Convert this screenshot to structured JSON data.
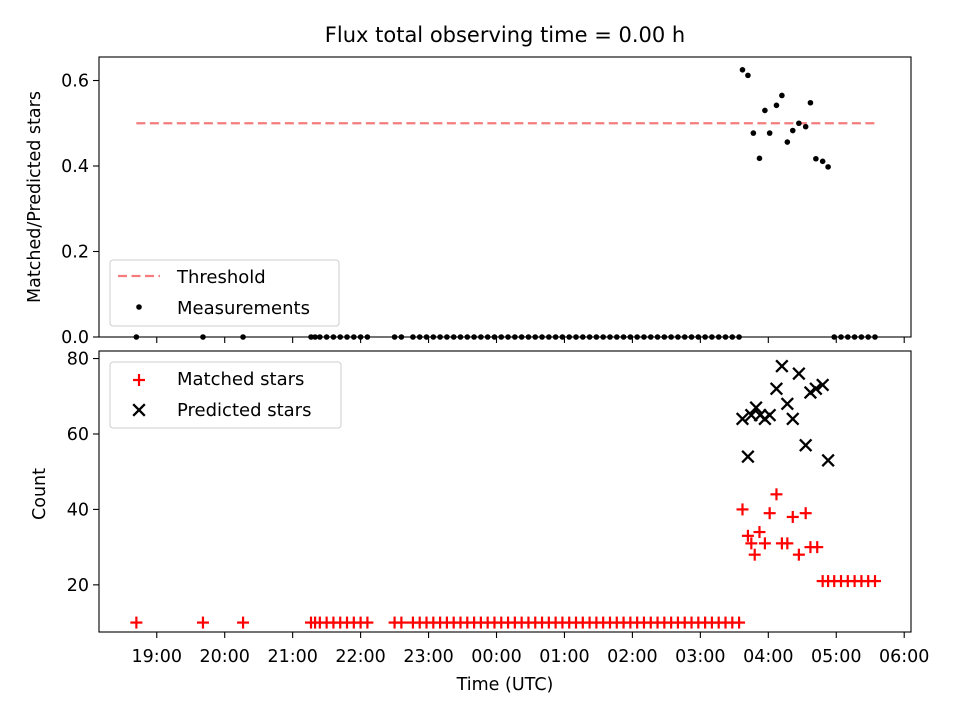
{
  "chart_data": [
    {
      "type": "scatter",
      "title": "Flux total observing time = 0.00 h",
      "xlabel": "",
      "ylabel": "Matched/Predicted stars",
      "ylim": [
        0,
        0.655
      ],
      "yticks": [
        0.0,
        0.2,
        0.4,
        0.6
      ],
      "ytick_labels": [
        "0.0",
        "0.2",
        "0.4",
        "0.6"
      ],
      "xlim": [
        18.15,
        30.1
      ],
      "legend": {
        "position": "bottom-left",
        "entries": [
          "Threshold",
          "Measurements"
        ]
      },
      "threshold": {
        "name": "Threshold",
        "value": 0.5,
        "x": [
          18.7,
          29.6
        ],
        "color": "#f47c7c"
      },
      "series": [
        {
          "name": "Measurements",
          "color": "#000000",
          "marker": "dot",
          "x": [
            18.7,
            19.68,
            20.27,
            21.27,
            21.33,
            21.4,
            21.5,
            21.6,
            21.7,
            21.8,
            21.9,
            22.0,
            22.1,
            22.5,
            22.6,
            22.77,
            22.87,
            22.97,
            23.07,
            23.17,
            23.27,
            23.37,
            23.47,
            23.57,
            23.67,
            23.77,
            23.87,
            23.97,
            24.07,
            24.17,
            24.27,
            24.37,
            24.47,
            24.57,
            24.67,
            24.77,
            24.87,
            24.97,
            25.07,
            25.17,
            25.27,
            25.37,
            25.47,
            25.57,
            25.67,
            25.77,
            25.87,
            25.97,
            26.07,
            26.17,
            26.27,
            26.37,
            26.47,
            26.57,
            26.67,
            26.77,
            26.87,
            26.97,
            27.07,
            27.17,
            27.27,
            27.37,
            27.47,
            27.57,
            27.62,
            27.7,
            27.78,
            27.87,
            27.95,
            28.02,
            28.12,
            28.2,
            28.28,
            28.36,
            28.45,
            28.55,
            28.62,
            28.7,
            28.8,
            28.88,
            28.97,
            29.07,
            29.17,
            29.27,
            29.37,
            29.47,
            29.57
          ],
          "y": [
            0,
            0,
            0,
            0,
            0,
            0,
            0,
            0,
            0,
            0,
            0,
            0,
            0,
            0,
            0,
            0,
            0,
            0,
            0,
            0,
            0,
            0,
            0,
            0,
            0,
            0,
            0,
            0,
            0,
            0,
            0,
            0,
            0,
            0,
            0,
            0,
            0,
            0,
            0,
            0,
            0,
            0,
            0,
            0,
            0,
            0,
            0,
            0,
            0,
            0,
            0,
            0,
            0,
            0,
            0,
            0,
            0,
            0,
            0,
            0,
            0,
            0,
            0,
            0,
            0.625,
            0.612,
            0.477,
            0.418,
            0.53,
            0.477,
            0.542,
            0.565,
            0.456,
            0.483,
            0.5,
            0.492,
            0.548,
            0.417,
            0.411,
            0.398,
            0,
            0,
            0,
            0,
            0,
            0,
            0
          ]
        }
      ]
    },
    {
      "type": "scatter",
      "title": "",
      "xlabel": "Time (UTC)",
      "ylabel": "Count",
      "ylim": [
        7.5,
        82
      ],
      "yticks": [
        20,
        40,
        60,
        80
      ],
      "ytick_labels": [
        "20",
        "40",
        "60",
        "80"
      ],
      "xlim": [
        18.15,
        30.1
      ],
      "xticks": [
        19,
        20,
        21,
        22,
        23,
        24,
        25,
        26,
        27,
        28,
        29,
        30
      ],
      "xtick_labels": [
        "19:00",
        "20:00",
        "21:00",
        "22:00",
        "23:00",
        "00:00",
        "01:00",
        "02:00",
        "03:00",
        "04:00",
        "05:00",
        "06:00"
      ],
      "legend": {
        "position": "top-left",
        "entries": [
          "Matched stars",
          "Predicted stars"
        ]
      },
      "series": [
        {
          "name": "Matched stars",
          "color": "#ff0000",
          "marker": "plus",
          "x": [
            18.7,
            19.68,
            20.27,
            21.27,
            21.33,
            21.4,
            21.5,
            21.6,
            21.7,
            21.8,
            21.9,
            22.0,
            22.1,
            22.5,
            22.6,
            22.77,
            22.87,
            22.97,
            23.07,
            23.17,
            23.27,
            23.37,
            23.47,
            23.57,
            23.67,
            23.77,
            23.87,
            23.97,
            24.07,
            24.17,
            24.27,
            24.37,
            24.47,
            24.57,
            24.67,
            24.77,
            24.87,
            24.97,
            25.07,
            25.17,
            25.27,
            25.37,
            25.47,
            25.57,
            25.67,
            25.77,
            25.87,
            25.97,
            26.07,
            26.17,
            26.27,
            26.37,
            26.47,
            26.57,
            26.67,
            26.77,
            26.87,
            26.97,
            27.07,
            27.17,
            27.27,
            27.37,
            27.47,
            27.57,
            27.62,
            27.7,
            27.75,
            27.8,
            27.87,
            27.95,
            28.02,
            28.12,
            28.2,
            28.28,
            28.36,
            28.45,
            28.55,
            28.62,
            28.72,
            28.8,
            28.88,
            28.97,
            29.07,
            29.17,
            29.27,
            29.37,
            29.47,
            29.57
          ],
          "y": [
            10,
            10,
            10,
            10,
            10,
            10,
            10,
            10,
            10,
            10,
            10,
            10,
            10,
            10,
            10,
            10,
            10,
            10,
            10,
            10,
            10,
            10,
            10,
            10,
            10,
            10,
            10,
            10,
            10,
            10,
            10,
            10,
            10,
            10,
            10,
            10,
            10,
            10,
            10,
            10,
            10,
            10,
            10,
            10,
            10,
            10,
            10,
            10,
            10,
            10,
            10,
            10,
            10,
            10,
            10,
            10,
            10,
            10,
            10,
            10,
            10,
            10,
            10,
            10,
            40,
            33,
            31,
            28,
            34,
            31,
            39,
            44,
            31,
            31,
            38,
            28,
            39,
            30,
            30,
            21,
            21,
            21,
            21,
            21,
            21,
            21,
            21,
            21
          ]
        },
        {
          "name": "Predicted stars",
          "color": "#000000",
          "marker": "x",
          "x": [
            27.62,
            27.7,
            27.75,
            27.82,
            27.88,
            27.95,
            28.02,
            28.12,
            28.2,
            28.28,
            28.36,
            28.45,
            28.55,
            28.62,
            28.7,
            28.8,
            28.88
          ],
          "y": [
            64,
            54,
            65,
            67,
            65,
            64,
            65,
            72,
            78,
            68,
            64,
            76,
            57,
            71,
            72,
            73,
            53
          ]
        }
      ]
    }
  ]
}
